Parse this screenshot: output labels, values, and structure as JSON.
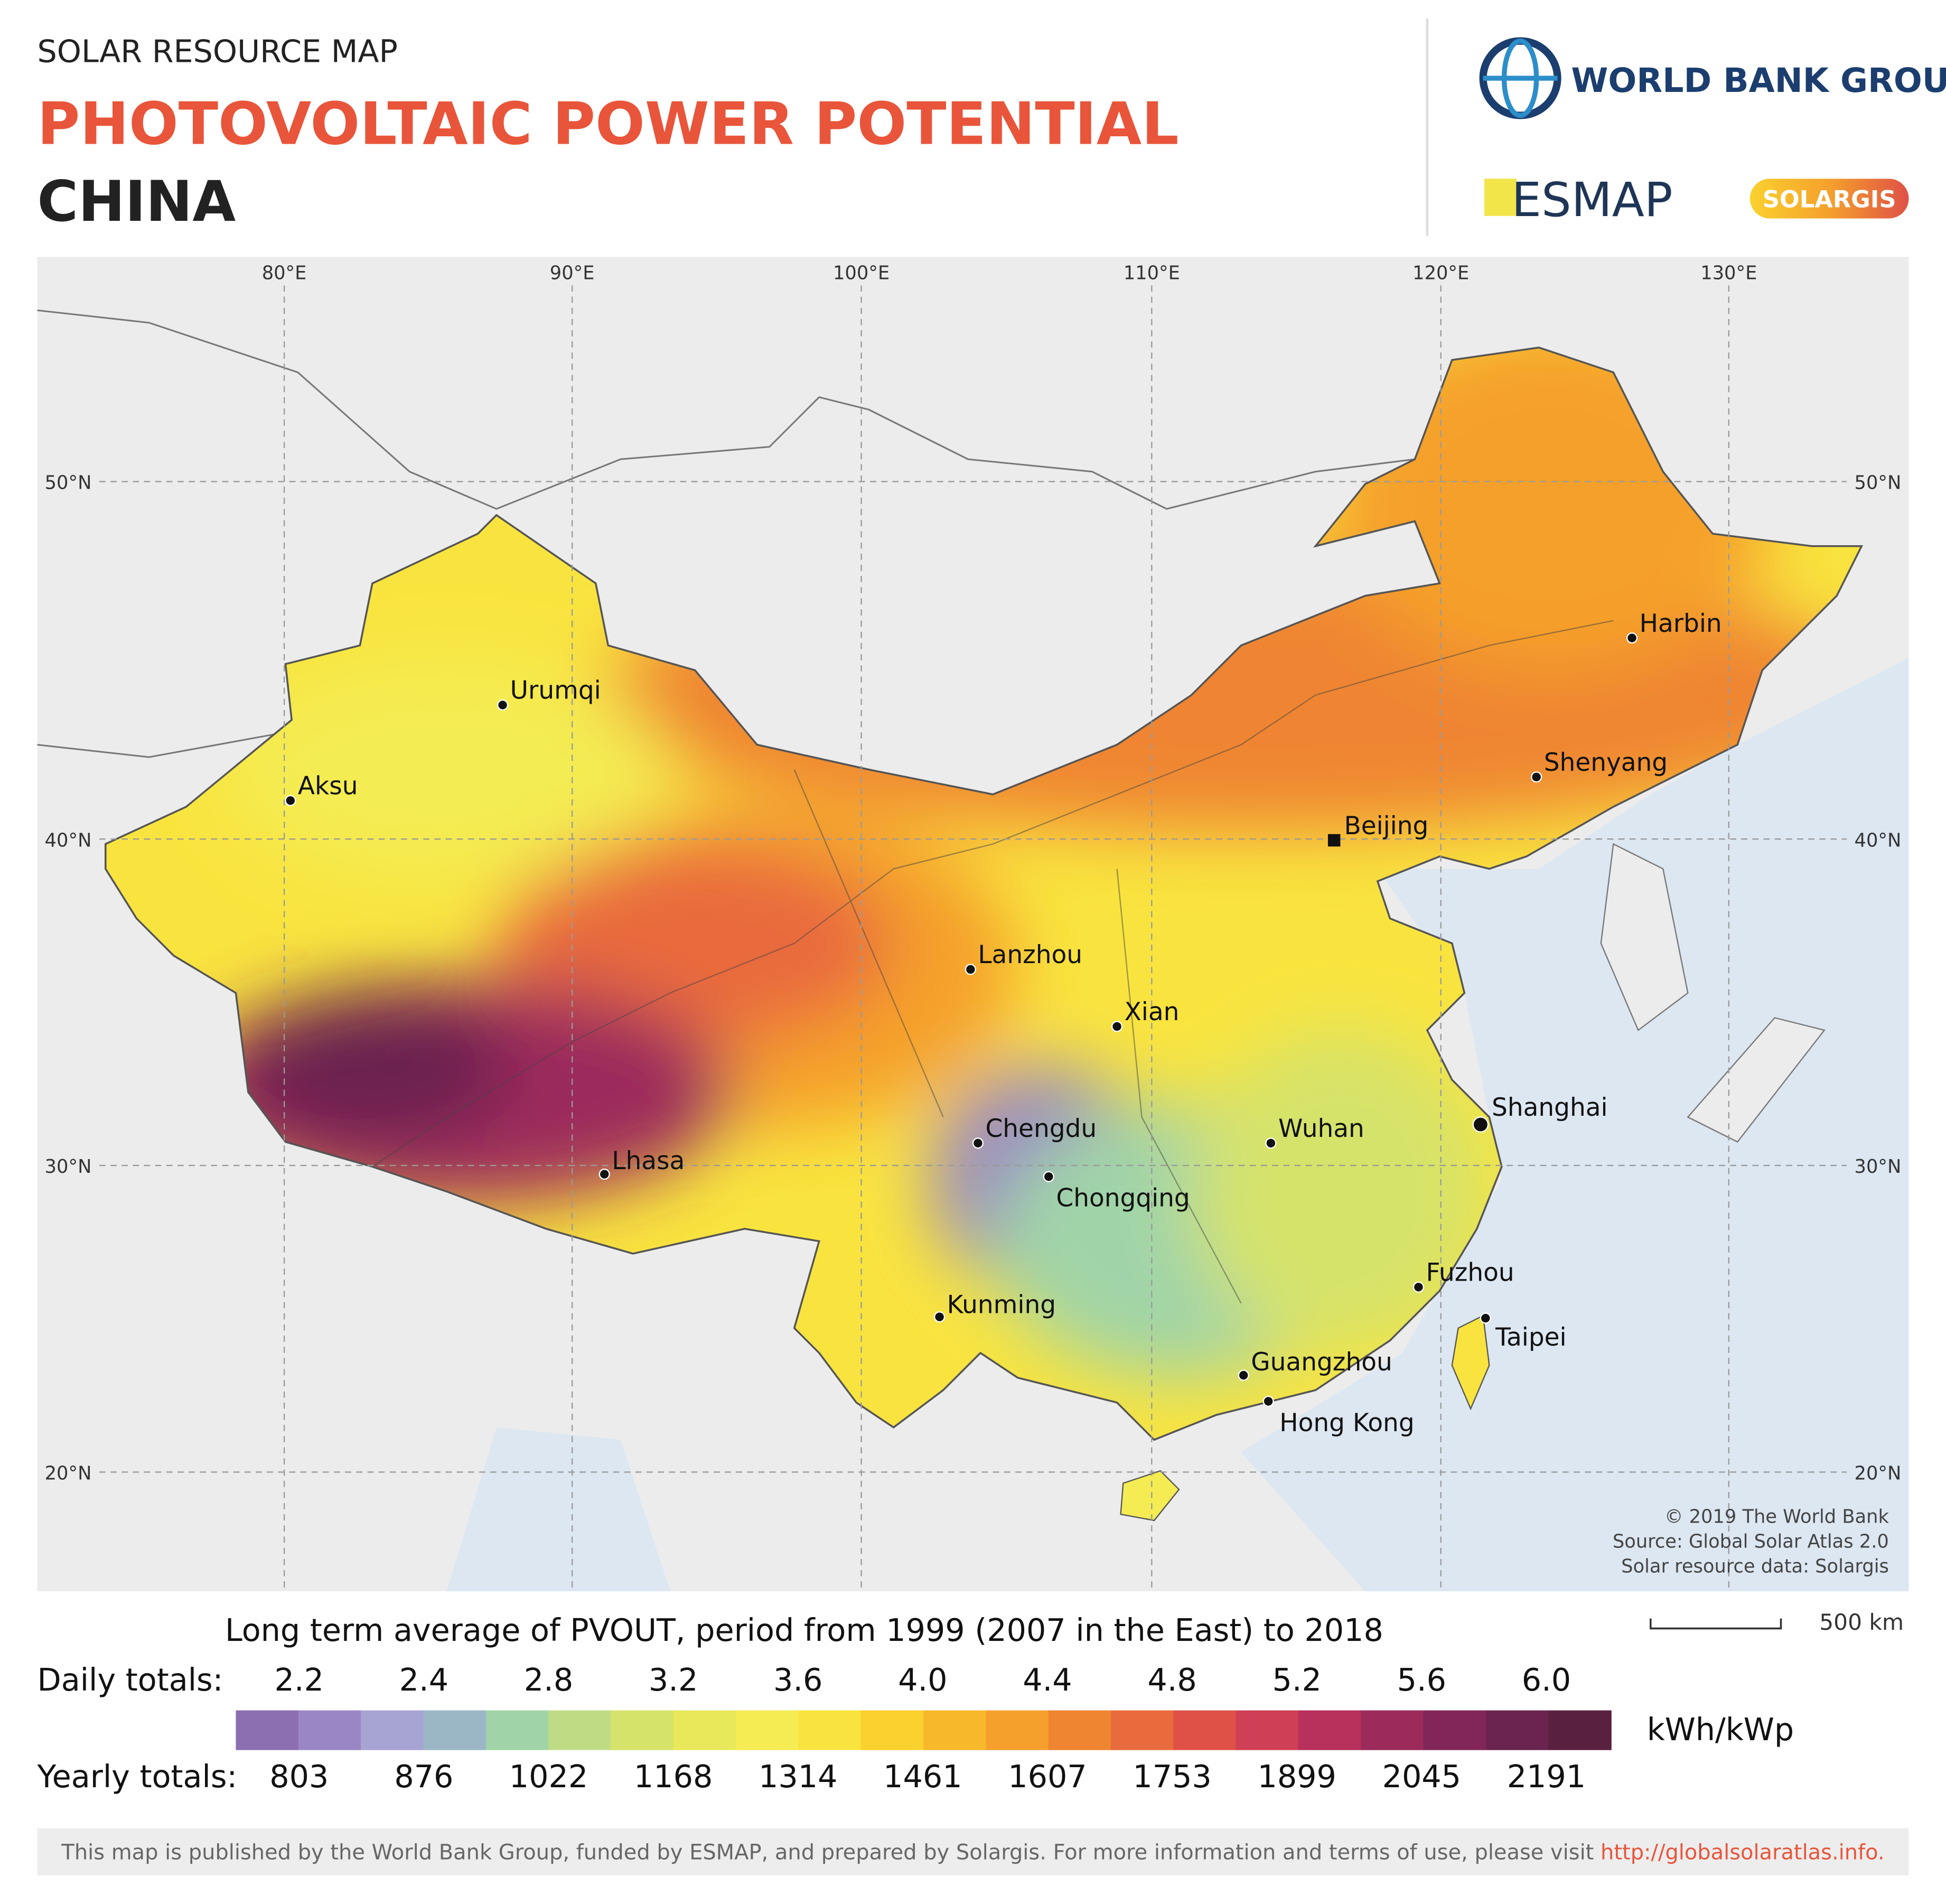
{
  "header": {
    "kicker": "SOLAR RESOURCE MAP",
    "title": "PHOTOVOLTAIC POWER POTENTIAL",
    "country": "CHINA"
  },
  "logos": {
    "world_bank": "WORLD BANK GROUP",
    "esmap": "ESMAP",
    "solargis": "SOLARGIS"
  },
  "map": {
    "longitudes": [
      "80°E",
      "90°E",
      "100°E",
      "110°E",
      "120°E",
      "130°E"
    ],
    "latitudes": [
      "50°N",
      "40°N",
      "30°N",
      "20°N"
    ],
    "cities": [
      "Urumqi",
      "Aksu",
      "Lanzhou",
      "Xian",
      "Chengdu",
      "Chongqing",
      "Lhasa",
      "Kunming",
      "Wuhan",
      "Beijing",
      "Harbin",
      "Shenyang",
      "Shanghai",
      "Fuzhou",
      "Taipei",
      "Guangzhou",
      "Hong Kong"
    ],
    "credits": [
      "© 2019 The World Bank",
      "Source: Global Solar Atlas 2.0",
      "Solar resource data: Solargis"
    ],
    "scale": "500 km"
  },
  "legend": {
    "title": "Long term average of PVOUT, period from 1999 (2007 in the East) to 2018",
    "daily_label": "Daily totals:",
    "daily": [
      "2.2",
      "2.4",
      "2.8",
      "3.2",
      "3.6",
      "4.0",
      "4.4",
      "4.8",
      "5.2",
      "5.6",
      "6.0"
    ],
    "unit": "kWh/kWp",
    "yearly_label": "Yearly totals:",
    "yearly": [
      "803",
      "876",
      "1022",
      "1168",
      "1314",
      "1461",
      "1607",
      "1753",
      "1899",
      "2045",
      "2191"
    ],
    "colors": [
      "#8c6fb0",
      "#9a86c4",
      "#a7a3d3",
      "#9bb7c6",
      "#a0d4a8",
      "#bfdc85",
      "#d6e36a",
      "#e9e85b",
      "#f4ec52",
      "#f9e43f",
      "#fbd12f",
      "#f8b82b",
      "#f5a02c",
      "#ef8531",
      "#e96a3c",
      "#df5147",
      "#cf3f55",
      "#b8305c",
      "#9c2a5b",
      "#82265a",
      "#6b2450",
      "#5a2040"
    ]
  },
  "footer": {
    "text": "This map is published by the World Bank Group, funded by ESMAP, and prepared by Solargis. For more information and terms of use, please visit",
    "link": "http://globalsolaratlas.info."
  }
}
